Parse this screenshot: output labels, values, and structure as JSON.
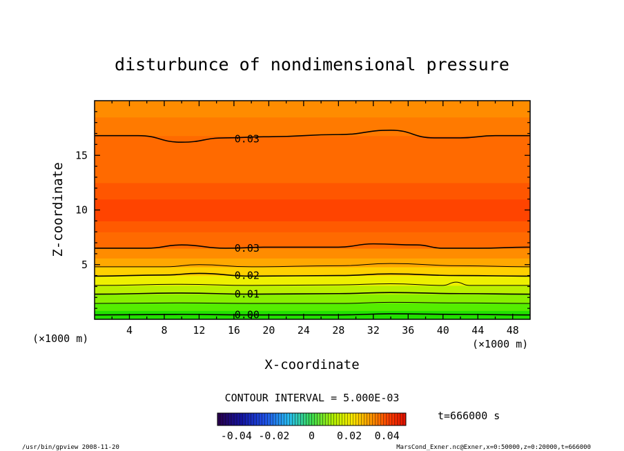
{
  "chart_data": {
    "type": "contour",
    "title": "disturbunce of nondimensional pressure",
    "xlabel": "X-coordinate",
    "ylabel": "Z-coordinate",
    "x_unit_left": "(×1000 m)",
    "x_unit_right": "(×1000 m)",
    "xlim": [
      0,
      50
    ],
    "ylim": [
      0,
      20
    ],
    "x_ticks": [
      "4",
      "8",
      "12",
      "16",
      "20",
      "24",
      "28",
      "32",
      "36",
      "40",
      "44",
      "48"
    ],
    "x_tick_values": [
      4,
      8,
      12,
      16,
      20,
      24,
      28,
      32,
      36,
      40,
      44,
      48
    ],
    "y_ticks": [
      "5",
      "10",
      "15"
    ],
    "y_tick_values": [
      5,
      10,
      15
    ],
    "contour_interval_text": "CONTOUR INTERVAL = 5.000E-03",
    "contour_labels": [
      {
        "text": "0.03",
        "x": 17.5,
        "z": 16.5
      },
      {
        "text": "0.03",
        "x": 17.5,
        "z": 6.5
      },
      {
        "text": "0.02",
        "x": 17.5,
        "z": 4.0
      },
      {
        "text": "0.01",
        "x": 17.5,
        "z": 2.3
      },
      {
        "text": "0.00",
        "x": 17.5,
        "z": 0.4
      }
    ],
    "contour_lines": [
      {
        "level": 0.03,
        "points": [
          [
            0,
            16.8
          ],
          [
            5,
            16.8
          ],
          [
            10,
            16.2
          ],
          [
            15,
            16.6
          ],
          [
            20,
            16.7
          ],
          [
            28,
            16.9
          ],
          [
            34,
            17.3
          ],
          [
            39,
            16.6
          ],
          [
            42,
            16.6
          ],
          [
            46,
            16.8
          ],
          [
            50,
            16.8
          ]
        ]
      },
      {
        "level": 0.03,
        "points": [
          [
            0,
            6.5
          ],
          [
            6,
            6.5
          ],
          [
            10,
            6.8
          ],
          [
            15,
            6.5
          ],
          [
            20,
            6.6
          ],
          [
            28,
            6.6
          ],
          [
            32,
            6.9
          ],
          [
            37,
            6.8
          ],
          [
            40,
            6.5
          ],
          [
            44,
            6.5
          ],
          [
            50,
            6.6
          ]
        ]
      },
      {
        "level": 0.025,
        "points": [
          [
            0,
            4.8
          ],
          [
            8,
            4.8
          ],
          [
            12,
            5.0
          ],
          [
            18,
            4.8
          ],
          [
            28,
            4.9
          ],
          [
            34,
            5.1
          ],
          [
            42,
            4.9
          ],
          [
            50,
            4.8
          ]
        ]
      },
      {
        "level": 0.02,
        "points": [
          [
            0,
            3.95
          ],
          [
            8,
            4.05
          ],
          [
            12,
            4.2
          ],
          [
            18,
            3.95
          ],
          [
            28,
            4.0
          ],
          [
            34,
            4.15
          ],
          [
            42,
            4.0
          ],
          [
            50,
            3.95
          ]
        ]
      },
      {
        "level": 0.015,
        "points": [
          [
            0,
            3.1
          ],
          [
            10,
            3.2
          ],
          [
            18,
            3.1
          ],
          [
            28,
            3.15
          ],
          [
            34,
            3.25
          ],
          [
            40,
            3.1
          ],
          [
            41.5,
            3.4
          ],
          [
            43,
            3.1
          ],
          [
            50,
            3.1
          ]
        ]
      },
      {
        "level": 0.01,
        "points": [
          [
            0,
            2.3
          ],
          [
            10,
            2.4
          ],
          [
            18,
            2.3
          ],
          [
            28,
            2.35
          ],
          [
            34,
            2.45
          ],
          [
            42,
            2.35
          ],
          [
            50,
            2.3
          ]
        ]
      },
      {
        "level": 0.005,
        "points": [
          [
            0,
            1.45
          ],
          [
            10,
            1.5
          ],
          [
            18,
            1.45
          ],
          [
            28,
            1.45
          ],
          [
            34,
            1.55
          ],
          [
            42,
            1.5
          ],
          [
            50,
            1.45
          ]
        ]
      },
      {
        "level": 0.0,
        "points": [
          [
            0,
            0.4
          ],
          [
            10,
            0.45
          ],
          [
            18,
            0.4
          ],
          [
            28,
            0.4
          ],
          [
            34,
            0.5
          ],
          [
            42,
            0.45
          ],
          [
            50,
            0.4
          ]
        ]
      }
    ],
    "fill_bands": [
      {
        "z_from": 0.0,
        "z_to": 0.8,
        "color": "#22e000"
      },
      {
        "z_from": 0.8,
        "z_to": 1.5,
        "color": "#55ee00"
      },
      {
        "z_from": 1.5,
        "z_to": 2.3,
        "color": "#88f000"
      },
      {
        "z_from": 2.3,
        "z_to": 3.1,
        "color": "#bbf000"
      },
      {
        "z_from": 3.1,
        "z_to": 4.0,
        "color": "#eef000"
      },
      {
        "z_from": 4.0,
        "z_to": 4.8,
        "color": "#ffd000"
      },
      {
        "z_from": 4.8,
        "z_to": 5.6,
        "color": "#ffa800"
      },
      {
        "z_from": 5.6,
        "z_to": 6.5,
        "color": "#ff8c00"
      },
      {
        "z_from": 6.5,
        "z_to": 8.0,
        "color": "#ff6a00"
      },
      {
        "z_from": 8.0,
        "z_to": 9.0,
        "color": "#ff5a00"
      },
      {
        "z_from": 9.0,
        "z_to": 11.0,
        "color": "#ff4400"
      },
      {
        "z_from": 11.0,
        "z_to": 12.5,
        "color": "#ff5600"
      },
      {
        "z_from": 12.5,
        "z_to": 16.8,
        "color": "#ff6a00"
      },
      {
        "z_from": 16.8,
        "z_to": 18.5,
        "color": "#ff7a00"
      },
      {
        "z_from": 18.5,
        "z_to": 20.0,
        "color": "#ff8c00"
      }
    ],
    "colorbar": {
      "ticks": [
        "-0.04",
        "-0.02",
        "0",
        "0.02",
        "0.04"
      ],
      "tick_values": [
        -0.04,
        -0.02,
        0.0,
        0.02,
        0.04
      ],
      "range": [
        -0.05,
        0.05
      ]
    },
    "time_label": "t=666000 s"
  },
  "footer": {
    "left": "/usr/bin/gpview  2008-11-20",
    "right": "MarsCond_Exner.nc@Exner,x=0:50000,z=0:20000,t=666000"
  }
}
